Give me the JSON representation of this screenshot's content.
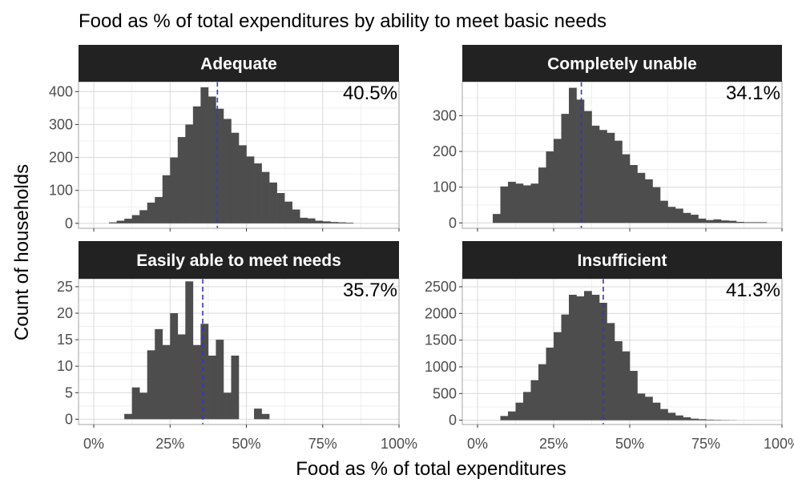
{
  "chart_data": {
    "type": "bar",
    "title": "Food as % of total expenditures by ability to meet basic needs",
    "xlabel": "Food as % of total expenditures",
    "ylabel": "Count of households",
    "x_tick_labels": [
      "0%",
      "25%",
      "50%",
      "75%",
      "100%"
    ],
    "x_ticks": [
      0,
      25,
      50,
      75,
      100
    ],
    "xlim": [
      -5,
      100
    ],
    "bin_width": 2.5,
    "grid": true,
    "mean_line_color": "#3333cc",
    "bar_color": "#4d4d4d",
    "strip_color": "#222222",
    "panels": [
      {
        "name": "Adequate",
        "mean_label": "40.5%",
        "mean": 40.5,
        "ylim": [
          -15,
          430
        ],
        "y_ticks": [
          0,
          100,
          200,
          300,
          400
        ],
        "y_tick_labels": [
          "0",
          "100",
          "200",
          "300",
          "400"
        ],
        "bin_starts": [
          5,
          7.5,
          10,
          12.5,
          15,
          17.5,
          20,
          22.5,
          25,
          27.5,
          30,
          32.5,
          35,
          37.5,
          40,
          42.5,
          45,
          47.5,
          50,
          52.5,
          55,
          57.5,
          60,
          62.5,
          65,
          67.5,
          70,
          72.5,
          75,
          77.5,
          80,
          82.5
        ],
        "values": [
          3,
          8,
          14,
          25,
          40,
          63,
          80,
          146,
          200,
          262,
          300,
          355,
          413,
          385,
          348,
          317,
          275,
          237,
          203,
          182,
          156,
          124,
          92,
          66,
          42,
          17,
          15,
          8,
          6,
          4,
          3,
          2
        ]
      },
      {
        "name": "Completely unable",
        "mean_label": "34.1%",
        "mean": 34.1,
        "ylim": [
          -15,
          395
        ],
        "y_ticks": [
          0,
          100,
          200,
          300
        ],
        "y_tick_labels": [
          "0",
          "100",
          "200",
          "300"
        ],
        "bin_starts": [
          5,
          7.5,
          10,
          12.5,
          15,
          17.5,
          20,
          22.5,
          25,
          27.5,
          30,
          32.5,
          35,
          37.5,
          40,
          42.5,
          45,
          47.5,
          50,
          52.5,
          55,
          57.5,
          60,
          62.5,
          65,
          67.5,
          70,
          72.5,
          75,
          77.5,
          80,
          82.5,
          85,
          87.5,
          90,
          92.5
        ],
        "values": [
          25,
          102,
          115,
          110,
          105,
          110,
          155,
          200,
          235,
          305,
          378,
          345,
          313,
          272,
          260,
          252,
          230,
          192,
          162,
          140,
          122,
          100,
          62,
          45,
          40,
          28,
          23,
          12,
          8,
          10,
          7,
          6,
          3,
          2,
          2,
          2
        ]
      },
      {
        "name": "Easily able to meet needs",
        "mean_label": "35.7%",
        "mean": 35.7,
        "ylim": [
          -1,
          26.5
        ],
        "y_ticks": [
          0,
          5,
          10,
          15,
          20,
          25
        ],
        "y_tick_labels": [
          "0",
          "5",
          "10",
          "15",
          "20",
          "25"
        ],
        "bin_starts": [
          10,
          12.5,
          15,
          17.5,
          20,
          22.5,
          25,
          27.5,
          30,
          32.5,
          35,
          37.5,
          40,
          42.5,
          45,
          47.5,
          50,
          52.5,
          55,
          57.5,
          60,
          62.5
        ],
        "values": [
          1,
          6,
          5,
          13,
          17,
          14,
          20,
          16,
          26,
          14,
          18,
          12,
          15,
          5,
          12,
          0,
          0,
          2,
          1,
          0,
          0,
          0
        ]
      },
      {
        "name": "Insufficient",
        "mean_label": "41.3%",
        "mean": 41.3,
        "ylim": [
          -80,
          2650
        ],
        "y_ticks": [
          0,
          500,
          1000,
          1500,
          2000,
          2500
        ],
        "y_tick_labels": [
          "0",
          "500",
          "1000",
          "1500",
          "2000",
          "2500"
        ],
        "bin_starts": [
          7.5,
          10,
          12.5,
          15,
          17.5,
          20,
          22.5,
          25,
          27.5,
          30,
          32.5,
          35,
          37.5,
          40,
          42.5,
          45,
          47.5,
          50,
          52.5,
          55,
          57.5,
          60,
          62.5,
          65,
          67.5,
          70,
          72.5,
          75,
          77.5,
          80,
          82.5
        ],
        "values": [
          80,
          165,
          330,
          530,
          750,
          1050,
          1360,
          1650,
          1980,
          2350,
          2320,
          2420,
          2350,
          2200,
          1820,
          1480,
          1290,
          925,
          500,
          440,
          330,
          210,
          140,
          90,
          55,
          30,
          20,
          12,
          8,
          5,
          3
        ]
      }
    ]
  }
}
